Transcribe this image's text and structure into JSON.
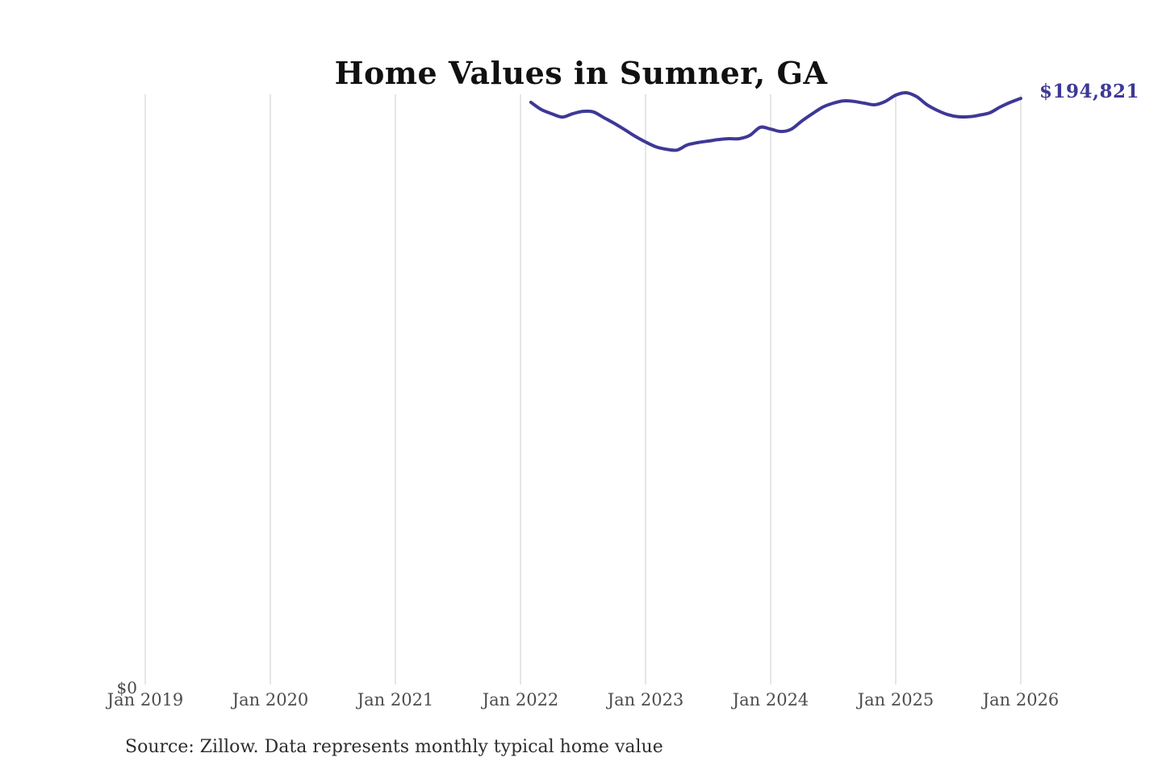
{
  "title": "Home Values in Sumner, GA",
  "annotation": {
    "latest_value": "$194,821"
  },
  "y_axis": {
    "zero_label": "$0"
  },
  "source": "Source: Zillow. Data represents monthly typical home value",
  "colors": {
    "line": "#3e3896",
    "annotation_text": "#3e3896",
    "gridline": "#cccccc",
    "axis_text": "#4d4d4d",
    "title_text": "#111111",
    "source_text": "#2e2e2e",
    "background": "#ffffff"
  },
  "chart_data": {
    "type": "line",
    "title": "Home Values in Sumner, GA",
    "xlabel": "",
    "ylabel": "",
    "x_axis_start": "2019-01",
    "x_axis_end": "2026-01",
    "x_tick_labels": [
      "Jan 2019",
      "Jan 2020",
      "Jan 2021",
      "Jan 2022",
      "Jan 2023",
      "Jan 2024",
      "Jan 2025",
      "Jan 2026"
    ],
    "ylim": [
      0,
      196700
    ],
    "y_tick_labels": [
      "$0"
    ],
    "gridlines": "vertical-at-january",
    "legend": "none",
    "last_point_label": "$194,821",
    "series": [
      {
        "name": "Monthly typical home value",
        "frequency": "monthly",
        "start_month": "2022-02",
        "end_month": "2026-01",
        "values": [
          193500,
          191100,
          189700,
          188600,
          189700,
          190500,
          190300,
          188400,
          186500,
          184400,
          182200,
          180300,
          178700,
          177900,
          177600,
          179300,
          180100,
          180600,
          181100,
          181400,
          181400,
          182500,
          185200,
          184600,
          183800,
          184600,
          187300,
          189700,
          191900,
          193200,
          194000,
          193800,
          193200,
          192700,
          193800,
          195900,
          196700,
          195400,
          192700,
          190800,
          189400,
          188700,
          188700,
          189200,
          190000,
          191900,
          193500,
          194821
        ]
      }
    ]
  }
}
